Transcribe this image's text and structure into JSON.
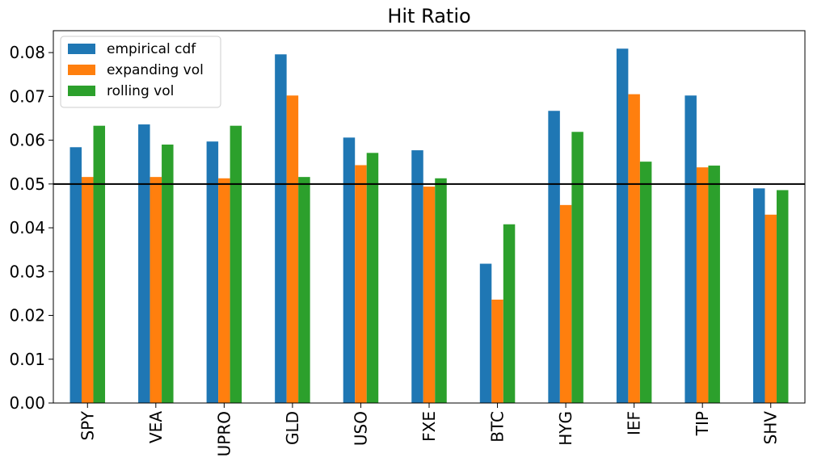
{
  "chart_data": {
    "type": "bar",
    "title": "Hit Ratio",
    "xlabel": "",
    "ylabel": "",
    "categories": [
      "SPY",
      "VEA",
      "UPRO",
      "GLD",
      "USO",
      "FXE",
      "BTC",
      "HYG",
      "IEF",
      "TIP",
      "SHV"
    ],
    "series": [
      {
        "name": "empirical cdf",
        "color": "#1f77b4",
        "values": [
          0.0584,
          0.0636,
          0.0597,
          0.0796,
          0.0606,
          0.0577,
          0.0318,
          0.0667,
          0.0809,
          0.0702,
          0.049
        ]
      },
      {
        "name": "expanding vol",
        "color": "#ff7f0e",
        "values": [
          0.0516,
          0.0516,
          0.0513,
          0.0702,
          0.0543,
          0.0494,
          0.0236,
          0.0452,
          0.0705,
          0.0538,
          0.043
        ]
      },
      {
        "name": "rolling vol",
        "color": "#2ca02c",
        "values": [
          0.0633,
          0.059,
          0.0633,
          0.0516,
          0.0571,
          0.0513,
          0.0408,
          0.0619,
          0.0551,
          0.0542,
          0.0486
        ]
      }
    ],
    "ylim": [
      0,
      0.085
    ],
    "yticks": [
      "0.00",
      "0.01",
      "0.02",
      "0.03",
      "0.04",
      "0.05",
      "0.06",
      "0.07",
      "0.08"
    ],
    "reference_line": {
      "y": 0.05,
      "color": "#000000"
    },
    "grid": false,
    "legend": "top-left"
  }
}
